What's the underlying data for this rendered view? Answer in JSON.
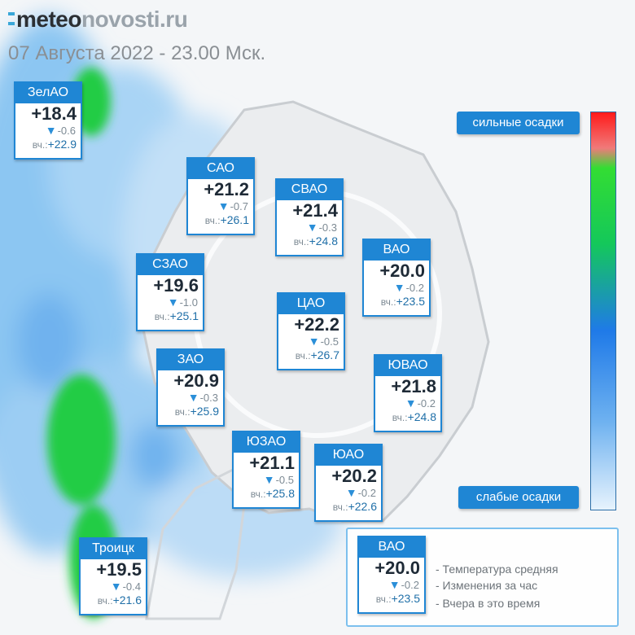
{
  "header": {
    "logo_a": "meteo",
    "logo_b": "novosti.ru",
    "subtitle": "07 Августа 2022 - 23.00 Мск."
  },
  "districts": [
    {
      "name": "ЗелАО",
      "temp": "+18.4",
      "change": "-0.6",
      "yesterday_label": "вч.:",
      "yesterday": "+22.9"
    },
    {
      "name": "САО",
      "temp": "+21.2",
      "change": "-0.7",
      "yesterday_label": "вч.:",
      "yesterday": "+26.1"
    },
    {
      "name": "СВАО",
      "temp": "+21.4",
      "change": "-0.3",
      "yesterday_label": "вч.:",
      "yesterday": "+24.8"
    },
    {
      "name": "ВАО",
      "temp": "+20.0",
      "change": "-0.2",
      "yesterday_label": "вч.:",
      "yesterday": "+23.5"
    },
    {
      "name": "СЗАО",
      "temp": "+19.6",
      "change": "-1.0",
      "yesterday_label": "вч.:",
      "yesterday": "+25.1"
    },
    {
      "name": "ЦАО",
      "temp": "+22.2",
      "change": "-0.5",
      "yesterday_label": "вч.:",
      "yesterday": "+26.7"
    },
    {
      "name": "ЗАО",
      "temp": "+20.9",
      "change": "-0.3",
      "yesterday_label": "вч.:",
      "yesterday": "+25.9"
    },
    {
      "name": "ЮВАО",
      "temp": "+21.8",
      "change": "-0.2",
      "yesterday_label": "вч.:",
      "yesterday": "+24.8"
    },
    {
      "name": "ЮЗАО",
      "temp": "+21.1",
      "change": "-0.5",
      "yesterday_label": "вч.:",
      "yesterday": "+25.8"
    },
    {
      "name": "ЮАО",
      "temp": "+20.2",
      "change": "-0.2",
      "yesterday_label": "вч.:",
      "yesterday": "+22.6"
    },
    {
      "name": "Троицк",
      "temp": "+19.5",
      "change": "-0.4",
      "yesterday_label": "вч.:",
      "yesterday": "+21.6"
    }
  ],
  "legend": {
    "high": "сильные осадки",
    "low": "слабые осадки"
  },
  "key": {
    "sample": {
      "name": "ВАО",
      "temp": "+20.0",
      "change": "-0.2",
      "yesterday_label": "вч.:",
      "yesterday": "+23.5"
    },
    "notes": [
      "- Температура средняя",
      "- Изменения за час",
      "- Вчера в это время"
    ]
  }
}
